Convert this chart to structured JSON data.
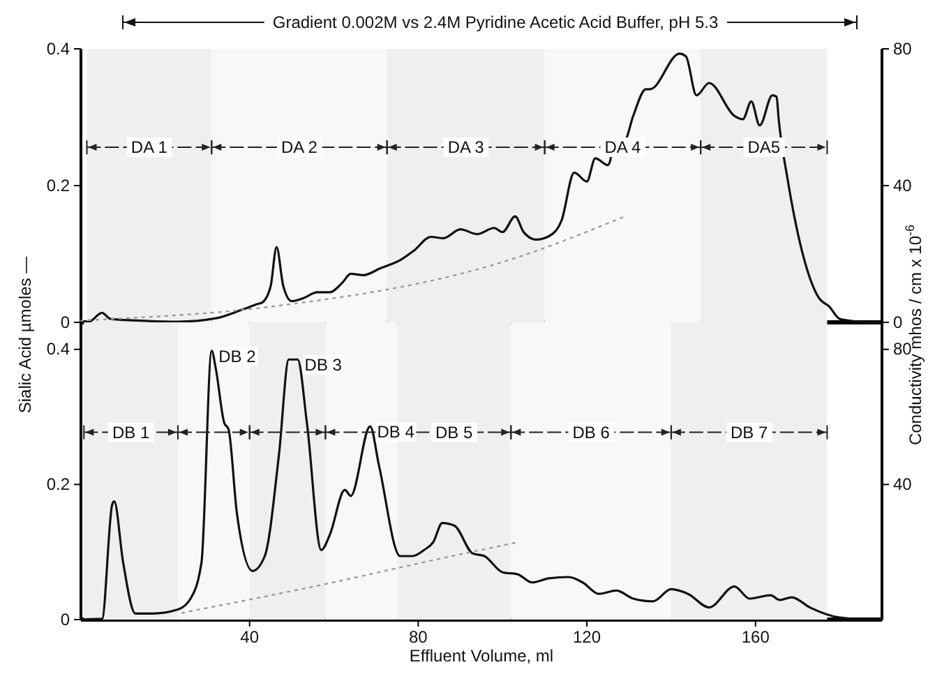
{
  "chart_data": [
    {
      "type": "line",
      "title": "Gradient 0.002M vs 2.4M Pyridine Acetic Acid Buffer, pH 5.3",
      "ylabel": "Sialic Acid µmoles —",
      "y2label": "Conductivity mhos / cm x 10$^{-6}$",
      "xlim": [
        0,
        190
      ],
      "ylim": [
        0,
        0.4
      ],
      "yticks": [
        0,
        0.2,
        0.4
      ],
      "y2lim": [
        0,
        80
      ],
      "y2ticks": [
        0,
        40,
        80
      ],
      "tick_labels": "y",
      "series": [
        {
          "color": "#111111",
          "line_style": "solid",
          "x": [
            0,
            2,
            5,
            7,
            16,
            23,
            32,
            38,
            42,
            43,
            45,
            46.4,
            48,
            50,
            53,
            56,
            59,
            62,
            64,
            67,
            71,
            76,
            79,
            83,
            86,
            90,
            94,
            98,
            100,
            103,
            105,
            108,
            111,
            114,
            117,
            120,
            122,
            125,
            127,
            129,
            131,
            134,
            135,
            142,
            143.5,
            146,
            149,
            155,
            157,
            159,
            161,
            164,
            165,
            165.5,
            167.6,
            171,
            175,
            177.5,
            180,
            184.5,
            186,
            190
          ],
          "values": [
            0,
            0.001,
            0.014,
            0.005,
            0.002,
            0.001,
            0.006,
            0.018,
            0.027,
            0.029,
            0.053,
            0.11,
            0.053,
            0.031,
            0.036,
            0.044,
            0.044,
            0.058,
            0.071,
            0.069,
            0.079,
            0.092,
            0.105,
            0.125,
            0.123,
            0.136,
            0.129,
            0.138,
            0.132,
            0.155,
            0.132,
            0.121,
            0.126,
            0.149,
            0.219,
            0.206,
            0.24,
            0.23,
            0.268,
            0.267,
            0.302,
            0.341,
            0.341,
            0.393,
            0.389,
            0.332,
            0.35,
            0.302,
            0.297,
            0.323,
            0.288,
            0.332,
            0.33,
            0.297,
            0.21,
            0.105,
            0.036,
            0.023,
            0.005,
            0.001,
            0,
            0
          ]
        },
        {
          "color": "#999999",
          "line_style": "dotted",
          "axis": "y2",
          "x": [
            0,
            4.6,
            44.5,
            103,
            129
          ],
          "values": [
            0.5,
            0.8,
            4.5,
            18.8,
            31
          ]
        }
      ],
      "bands": [
        {
          "axis": "x",
          "from": 1.4,
          "to": 31,
          "label": "DA 1",
          "color": "#efefef"
        },
        {
          "axis": "x",
          "from": 31,
          "to": 72.6,
          "label": "DA 2",
          "color": "#f8f8f8"
        },
        {
          "axis": "x",
          "from": 72.6,
          "to": 110,
          "label": "DA 3",
          "color": "#efefef"
        },
        {
          "axis": "x",
          "from": 110,
          "to": 147,
          "label": "DA 4",
          "color": "#f8f8f8"
        },
        {
          "axis": "x",
          "from": 147,
          "to": 177,
          "label": "DA5",
          "color": "#efefef"
        }
      ]
    },
    {
      "type": "line",
      "xlabel": "Effluent Volume, ml",
      "xlim": [
        0,
        190
      ],
      "xticks": [
        40,
        80,
        120,
        160
      ],
      "ylim": [
        0,
        0.44
      ],
      "yticks": [
        0,
        0.2,
        0.4
      ],
      "y2lim": [
        0,
        88
      ],
      "y2ticks": [
        40,
        80
      ],
      "series": [
        {
          "color": "#111111",
          "line_style": "solid",
          "x": [
            0,
            4.3,
            5,
            7.4,
            7.9,
            10,
            12.9,
            17,
            23,
            26,
            28.6,
            31,
            32,
            34,
            35,
            37,
            40.7,
            43.6,
            47,
            49.3,
            51.4,
            53.6,
            57,
            59,
            62.6,
            64,
            68.6,
            70.7,
            75.7,
            78.6,
            81.4,
            83.6,
            85.7,
            88.6,
            92.9,
            95.7,
            100,
            103.6,
            107,
            111,
            115.7,
            119,
            122.9,
            127,
            131,
            135.7,
            140,
            144,
            149,
            155,
            158.6,
            163.6,
            165.7,
            168.6,
            172.9,
            180,
            187,
            190
          ],
          "values": [
            0,
            0.001,
            0.001,
            0.17,
            0.175,
            0.085,
            0.009,
            0.009,
            0.015,
            0.031,
            0.085,
            0.398,
            0.371,
            0.291,
            0.282,
            0.157,
            0.072,
            0.094,
            0.246,
            0.385,
            0.385,
            0.291,
            0.103,
            0.125,
            0.192,
            0.183,
            0.286,
            0.228,
            0.094,
            0.094,
            0.103,
            0.115,
            0.143,
            0.139,
            0.098,
            0.094,
            0.07,
            0.067,
            0.055,
            0.061,
            0.063,
            0.055,
            0.038,
            0.043,
            0.031,
            0.027,
            0.045,
            0.038,
            0.018,
            0.049,
            0.031,
            0.036,
            0.029,
            0.033,
            0.018,
            0.003,
            0,
            0
          ]
        },
        {
          "color": "#999999",
          "line_style": "dotted",
          "axis": "y2",
          "x": [
            24,
            56,
            88,
            104
          ],
          "values": [
            2,
            10,
            18.8,
            23
          ]
        }
      ],
      "bands": [
        {
          "axis": "x",
          "from": 0.7,
          "to": 23,
          "label": "DB 1",
          "color": "#efefef"
        },
        {
          "axis": "x",
          "from": 23,
          "to": 40,
          "color": "#f8f8f8"
        },
        {
          "axis": "x",
          "from": 40,
          "to": 58,
          "color": "#efefef"
        },
        {
          "axis": "x",
          "from": 58,
          "to": 75,
          "color": "#f8f8f8"
        },
        {
          "axis": "x",
          "from": 75,
          "to": 102,
          "label": "DB 5",
          "color": "#efefef"
        },
        {
          "axis": "x",
          "from": 102,
          "to": 140,
          "label": "DB 6",
          "color": "#f8f8f8"
        },
        {
          "axis": "x",
          "from": 140,
          "to": 177,
          "label": "DB 7",
          "color": "#efefef"
        }
      ],
      "annotations": [
        {
          "text": "DB 2",
          "x": 31,
          "y": 0.398
        },
        {
          "text": "DB 3",
          "x": 51.4,
          "y": 0.385
        },
        {
          "text": "DB 4",
          "x": 68.6,
          "y": 0.286
        }
      ]
    }
  ]
}
